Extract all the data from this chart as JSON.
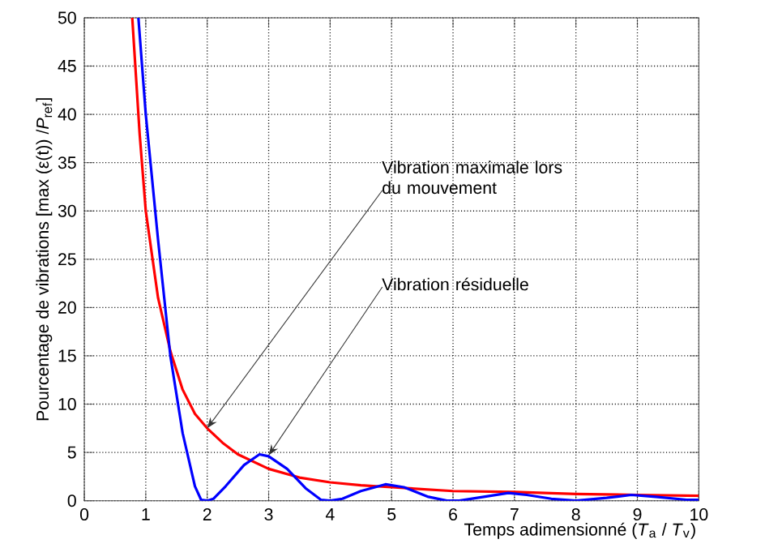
{
  "chart_data": {
    "type": "line",
    "xlabel": "Temps adimensionné (*T*$_{a}$ / *T*$_{v}$)",
    "ylabel": "Pourcentage de vibrations [max (ε(t)) /*P*$_{ref}$]",
    "xlim": [
      0,
      10
    ],
    "ylim": [
      0,
      50
    ],
    "xticks": [
      0,
      1,
      2,
      3,
      4,
      5,
      6,
      7,
      8,
      9,
      10
    ],
    "yticks": [
      0,
      5,
      10,
      15,
      20,
      25,
      30,
      35,
      40,
      45,
      50
    ],
    "grid": true,
    "marker": "none",
    "line_style": "solid",
    "annotations": [
      {
        "text": "Vibration maximale lors du mouvement",
        "x": 2,
        "y": 7.5
      },
      {
        "text": "Vibration résiduelle",
        "x": 3,
        "y": 4.7
      }
    ],
    "series": [
      {
        "color": "#ff0000",
        "x": [
          0.78,
          0.9,
          1,
          1.2,
          1.4,
          1.6,
          1.8,
          2,
          2.25,
          2.5,
          3,
          3.5,
          4,
          4.5,
          5,
          6,
          7,
          8,
          9,
          10
        ],
        "values": [
          50,
          38,
          30,
          21,
          15.5,
          11.5,
          9,
          7.5,
          6,
          4.8,
          3.3,
          2.4,
          1.9,
          1.6,
          1.4,
          1.0,
          0.9,
          0.7,
          0.6,
          0.5
        ]
      },
      {
        "color": "#0000ff",
        "x": [
          0.88,
          1,
          1.2,
          1.4,
          1.6,
          1.8,
          1.9,
          2,
          2.1,
          2.3,
          2.6,
          2.85,
          3,
          3.3,
          3.6,
          3.85,
          4,
          4.2,
          4.5,
          4.9,
          5.2,
          5.6,
          5.9,
          6.1,
          6.5,
          6.9,
          7.2,
          7.6,
          8,
          8.5,
          8.9,
          9.3,
          9.8,
          10
        ],
        "values": [
          50,
          40,
          27,
          15,
          7,
          1.5,
          0.1,
          0,
          0.2,
          1.5,
          3.7,
          4.8,
          4.6,
          3.3,
          1.3,
          0.1,
          0,
          0.2,
          1,
          1.7,
          1.4,
          0.4,
          0,
          0,
          0.4,
          0.8,
          0.6,
          0.2,
          0,
          0.3,
          0.6,
          0.4,
          0.1,
          0.1
        ]
      }
    ]
  }
}
